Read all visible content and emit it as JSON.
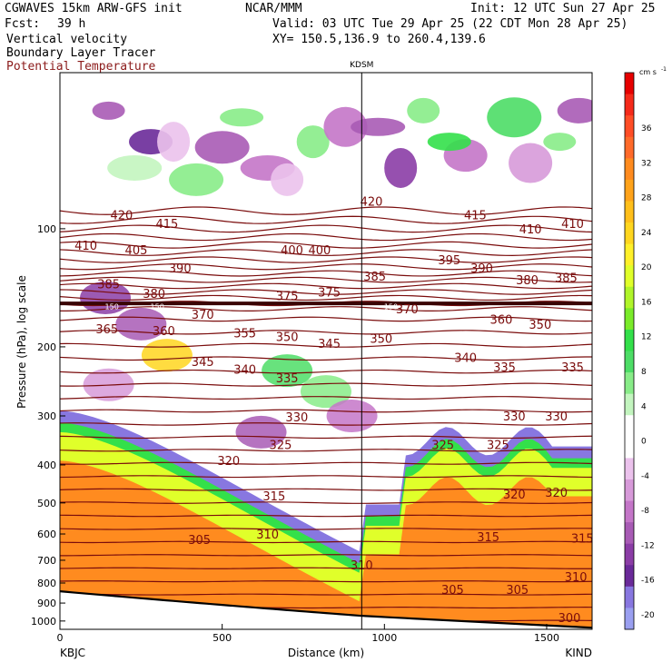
{
  "header": {
    "model": "CGWAVES 15km ARW-GFS init",
    "forecast_label": "Fcst:",
    "forecast_hours": "39 h",
    "org": "NCAR/MMM",
    "init": "Init: 12 UTC Sun 27 Apr 25",
    "valid": "Valid: 03 UTC Tue 29 Apr 25 (22 CDT Mon 28 Apr 25)",
    "xy": "XY= 150.5,136.9 to 260.4,139.6",
    "field1": "Vertical velocity",
    "field2": "Boundary Layer Tracer",
    "field3": "Potential Temperature"
  },
  "colors": {
    "theta_contour": "#7a0c0c",
    "header_field3": "#8b1a1a",
    "ground": "#ffffff"
  },
  "chart_data": {
    "type": "heatmap",
    "xlabel": "Distance (km)",
    "ylabel": "Pressure (hPa), log scale",
    "xlim": [
      0,
      1640
    ],
    "ylim_hpa": [
      1050,
      40
    ],
    "x_ticks": [
      0,
      500,
      1000,
      1500
    ],
    "y_ticks": [
      100,
      200,
      300,
      400,
      500,
      600,
      700,
      800,
      900,
      1000
    ],
    "x_end_labels": {
      "left": "KBJC",
      "right": "KIND"
    },
    "marker": {
      "label": "KDSM",
      "x_km": 930
    },
    "colorbar": {
      "unit": "cm s",
      "unit_exp": "-1",
      "labels": [
        36,
        32,
        28,
        24,
        20,
        16,
        12,
        8,
        4,
        0,
        -4,
        -8,
        -12,
        -16,
        -20
      ],
      "colors": [
        "#e60000",
        "#f52a1a",
        "#ff4d26",
        "#ff6a2a",
        "#ff8b1f",
        "#ffa31a",
        "#ffbf1a",
        "#ffd61f",
        "#fff02a",
        "#e0ff2a",
        "#b0f52a",
        "#7aeb2a",
        "#33e04a",
        "#4ddd66",
        "#88ec88",
        "#c3f5bf",
        "#ffffff",
        "#ffffff",
        "#ebc2ec",
        "#d79ad9",
        "#c476c8",
        "#a85bb5",
        "#8b3da6",
        "#6a2a99",
        "#8877e0",
        "#9a9ff0"
      ]
    },
    "theta_labels": [
      {
        "v": "420",
        "x": 190,
        "p": 92
      },
      {
        "v": "415",
        "x": 330,
        "p": 97
      },
      {
        "v": "410",
        "x": 80,
        "p": 110
      },
      {
        "v": "405",
        "x": 235,
        "p": 113
      },
      {
        "v": "400",
        "x": 715,
        "p": 113
      },
      {
        "v": "400",
        "x": 800,
        "p": 113
      },
      {
        "v": "390",
        "x": 370,
        "p": 126
      },
      {
        "v": "385",
        "x": 150,
        "p": 138
      },
      {
        "v": "380",
        "x": 290,
        "p": 146
      },
      {
        "v": "375",
        "x": 700,
        "p": 148
      },
      {
        "v": "375",
        "x": 830,
        "p": 145
      },
      {
        "v": "370",
        "x": 440,
        "p": 165
      },
      {
        "v": "365",
        "x": 145,
        "p": 180
      },
      {
        "v": "360",
        "x": 320,
        "p": 182
      },
      {
        "v": "355",
        "x": 570,
        "p": 184
      },
      {
        "v": "350",
        "x": 700,
        "p": 188
      },
      {
        "v": "345",
        "x": 830,
        "p": 196
      },
      {
        "v": "345",
        "x": 440,
        "p": 218
      },
      {
        "v": "340",
        "x": 570,
        "p": 228
      },
      {
        "v": "335",
        "x": 700,
        "p": 240
      },
      {
        "v": "330",
        "x": 730,
        "p": 302
      },
      {
        "v": "325",
        "x": 680,
        "p": 355
      },
      {
        "v": "320",
        "x": 520,
        "p": 390
      },
      {
        "v": "315",
        "x": 660,
        "p": 480
      },
      {
        "v": "310",
        "x": 640,
        "p": 600
      },
      {
        "v": "305",
        "x": 430,
        "p": 620
      },
      {
        "v": "420",
        "x": 960,
        "p": 85
      },
      {
        "v": "415",
        "x": 1280,
        "p": 92
      },
      {
        "v": "410",
        "x": 1450,
        "p": 100
      },
      {
        "v": "410",
        "x": 1580,
        "p": 97
      },
      {
        "v": "395",
        "x": 1200,
        "p": 120
      },
      {
        "v": "390",
        "x": 1300,
        "p": 126
      },
      {
        "v": "385",
        "x": 970,
        "p": 132
      },
      {
        "v": "380",
        "x": 1440,
        "p": 135
      },
      {
        "v": "385",
        "x": 1560,
        "p": 133
      },
      {
        "v": "370",
        "x": 1070,
        "p": 160
      },
      {
        "v": "360",
        "x": 1360,
        "p": 170
      },
      {
        "v": "350",
        "x": 1480,
        "p": 175
      },
      {
        "v": "350",
        "x": 990,
        "p": 190
      },
      {
        "v": "340",
        "x": 1250,
        "p": 213
      },
      {
        "v": "335",
        "x": 1370,
        "p": 225
      },
      {
        "v": "335",
        "x": 1580,
        "p": 225
      },
      {
        "v": "330",
        "x": 1400,
        "p": 300
      },
      {
        "v": "330",
        "x": 1530,
        "p": 300
      },
      {
        "v": "325",
        "x": 1180,
        "p": 355
      },
      {
        "v": "325",
        "x": 1350,
        "p": 355
      },
      {
        "v": "320",
        "x": 1400,
        "p": 475
      },
      {
        "v": "320",
        "x": 1530,
        "p": 470
      },
      {
        "v": "315",
        "x": 1320,
        "p": 610
      },
      {
        "v": "315",
        "x": 1610,
        "p": 615
      },
      {
        "v": "310",
        "x": 930,
        "p": 720
      },
      {
        "v": "310",
        "x": 1590,
        "p": 770
      },
      {
        "v": "305",
        "x": 1210,
        "p": 830
      },
      {
        "v": "305",
        "x": 1410,
        "p": 830
      },
      {
        "v": "300",
        "x": 1570,
        "p": 980
      }
    ],
    "tropo_labels": [
      {
        "v": "150",
        "x": 160,
        "p": 158
      },
      {
        "v": "150",
        "x": 300,
        "p": 158
      },
      {
        "v": "150",
        "x": 1020,
        "p": 158
      }
    ]
  }
}
